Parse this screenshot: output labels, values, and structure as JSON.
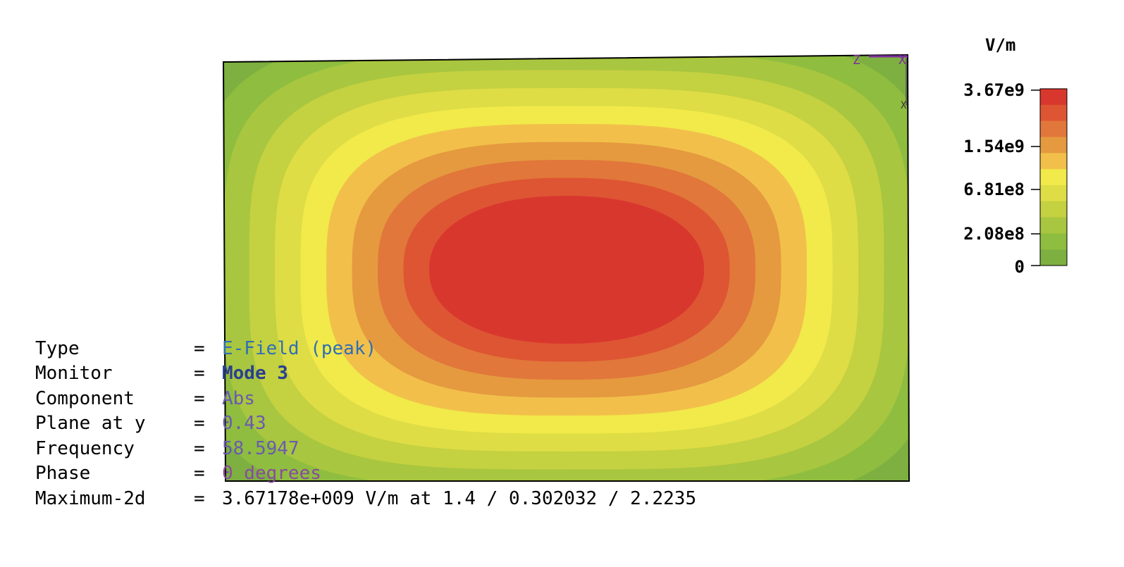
{
  "chart_data": {
    "type": "heatmap",
    "field": "E-field magnitude, banded contours",
    "colorbar": {
      "unit": "V/m",
      "tick_labels": [
        "3.67e9",
        "1.54e9",
        "6.81e8",
        "2.08e8",
        "0"
      ],
      "band_colors": [
        "#7db040",
        "#8fbd3f",
        "#a8c63f",
        "#c4d140",
        "#dedd45",
        "#f1ea4a",
        "#f2c04a",
        "#e59a3f",
        "#e1773a",
        "#de5533",
        "#d8372e"
      ]
    },
    "axes_indicator": {
      "labels": [
        "Z",
        "X",
        "X"
      ]
    }
  },
  "info": [
    {
      "key": "Type",
      "eq": "=",
      "value": "E-Field (peak)",
      "color": "#2e6fb5"
    },
    {
      "key": "Monitor",
      "eq": "=",
      "value": "Mode 3",
      "color": "#2a3f8f"
    },
    {
      "key": "Component",
      "eq": "=",
      "value": "Abs",
      "color": "#6a5ab0"
    },
    {
      "key": "Plane at y",
      "eq": "=",
      "value": "0.43",
      "color": "#6a5ab0"
    },
    {
      "key": "Frequency",
      "eq": "=",
      "value": "58.5947",
      "color": "#6a5ab0"
    },
    {
      "key": "Phase",
      "eq": "=",
      "value": "0 degrees",
      "color": "#8a4aa0"
    },
    {
      "key": "Maximum-2d",
      "eq": "=",
      "value": "3.67178e+009 V/m at 1.4 / 0.302032 / 2.2235",
      "color": "#000000"
    }
  ]
}
